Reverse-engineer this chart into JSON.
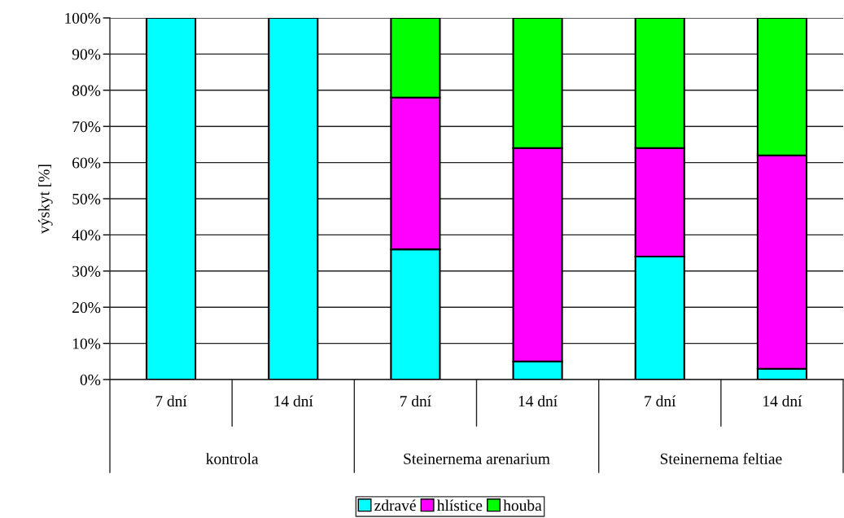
{
  "chart_data": {
    "type": "bar",
    "stacked": true,
    "categories": [
      "7 dní",
      "14 dní",
      "7 dní",
      "14 dní",
      "7 dní",
      "14 dní"
    ],
    "annotations": [
      "kontrola",
      "Steinernema arenarium",
      "Steinernema feltiae"
    ],
    "ylabel": "výskyt [%]",
    "series": [
      {
        "name": "zdravé",
        "color": "#00ffff",
        "values": [
          100,
          100,
          36,
          5,
          34,
          3
        ]
      },
      {
        "name": "hlístice",
        "color": "#ff00ff",
        "values": [
          null,
          null,
          42,
          59,
          30,
          59
        ]
      },
      {
        "name": "houba",
        "color": "#00ff00",
        "values": [
          null,
          null,
          22,
          36,
          36,
          38
        ]
      }
    ],
    "ylim": [
      0,
      100
    ],
    "yticks": [
      {
        "value": 0,
        "label": "0%"
      },
      {
        "value": 10,
        "label": "10%"
      },
      {
        "value": 20,
        "label": "20%"
      },
      {
        "value": 30,
        "label": "30%"
      },
      {
        "value": 40,
        "label": "40%"
      },
      {
        "value": 50,
        "label": "50%"
      },
      {
        "value": 60,
        "label": "60%"
      },
      {
        "value": 70,
        "label": "70%"
      },
      {
        "value": 80,
        "label": "80%"
      },
      {
        "value": 90,
        "label": "90%"
      },
      {
        "value": 100,
        "label": "100%"
      }
    ],
    "grid": "y",
    "legend": "bottom"
  }
}
